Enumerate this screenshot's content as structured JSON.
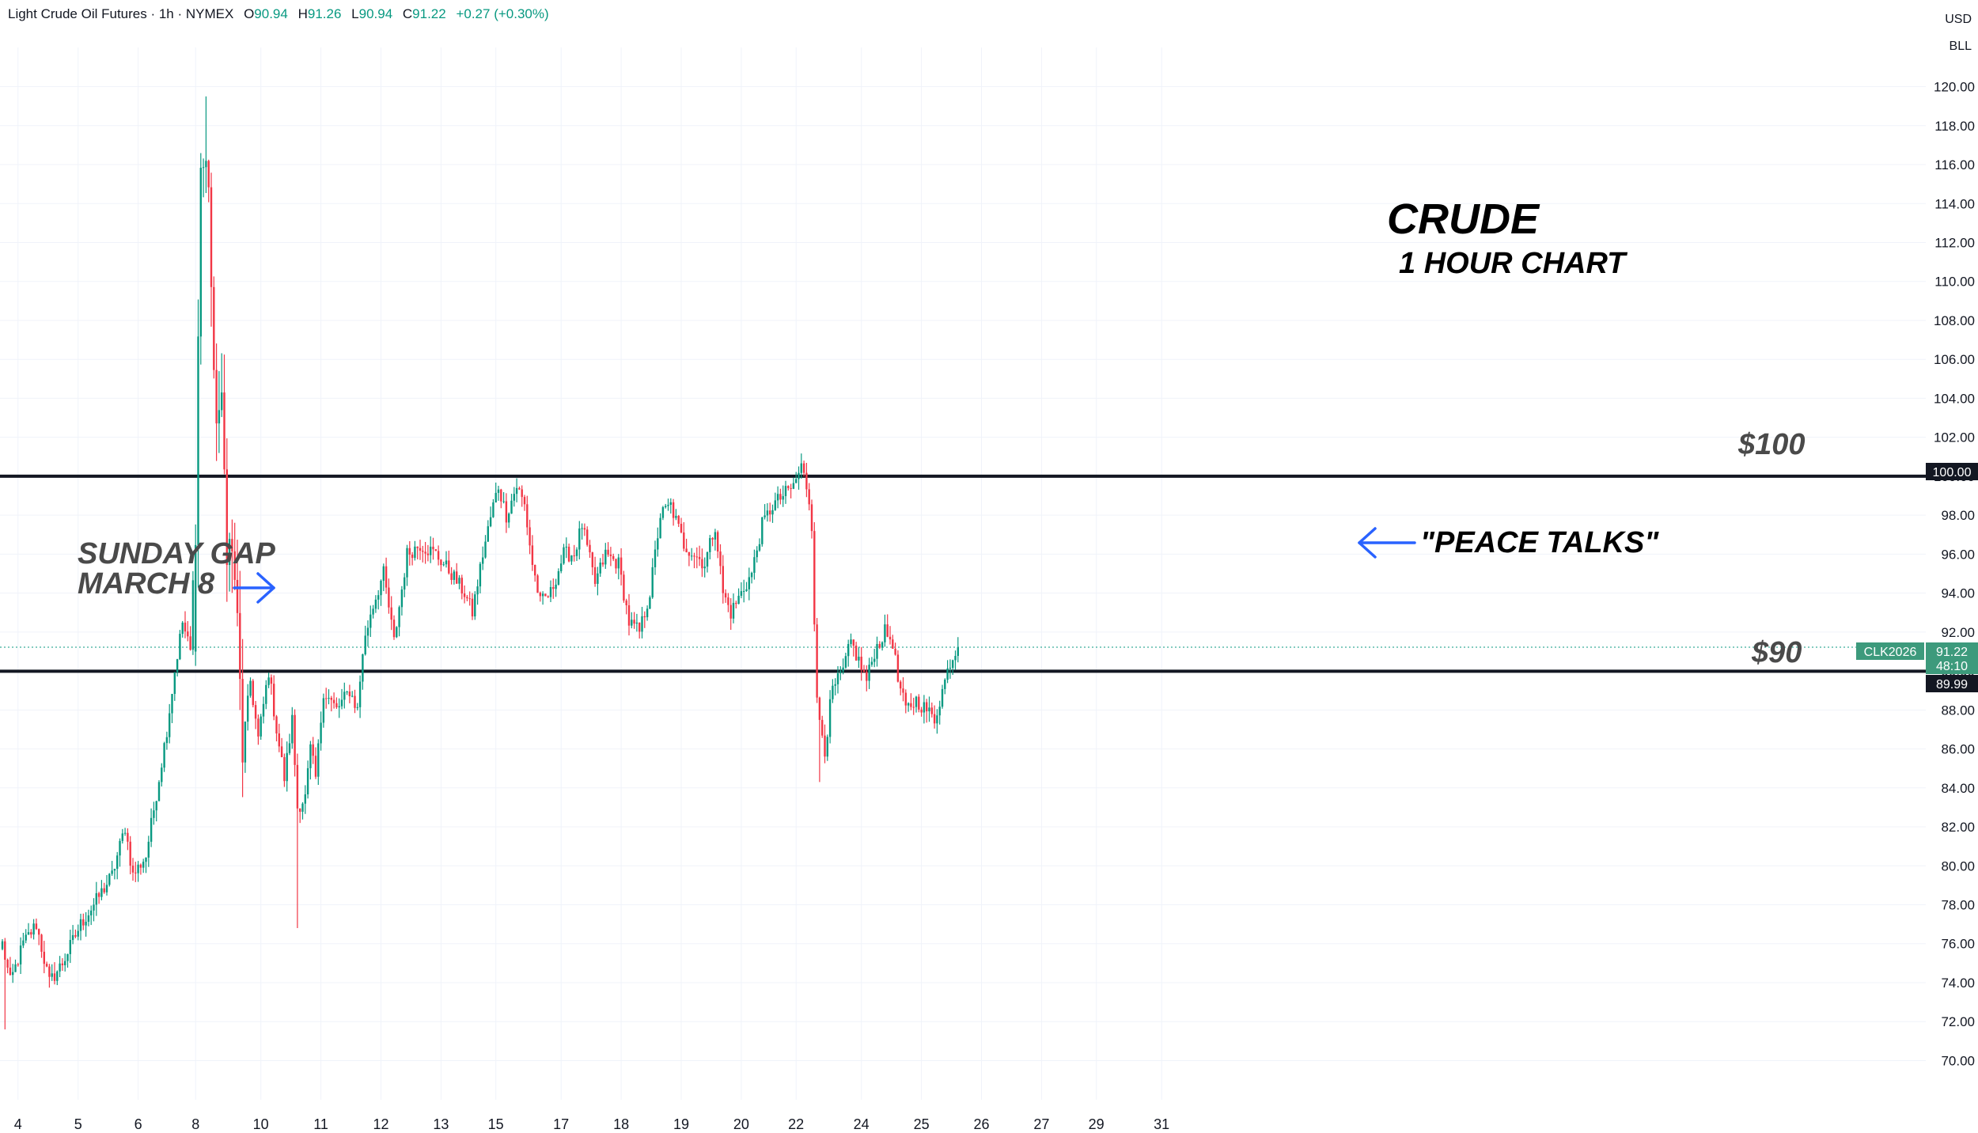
{
  "header": {
    "symbol_title": "Light Crude Oil Futures · 1h · NYMEX",
    "o_label": "O",
    "o_value": "90.94",
    "h_label": "H",
    "h_value": "91.26",
    "l_label": "L",
    "l_value": "90.94",
    "c_label": "C",
    "c_value": "91.22",
    "change": "+0.27 (+0.30%)"
  },
  "axis_currency": "USD",
  "axis_unit": "BLL",
  "colors": {
    "up": "#089981",
    "down": "#f23645",
    "level_line": "#131722",
    "annotation_text": "#4a4a4a",
    "arrow": "#2962ff",
    "price_tag": "#3d9a7c",
    "grid": "#f0f3fa"
  },
  "annotations": {
    "title": "CRUDE",
    "subtitle": "1 HOUR CHART",
    "level_100_label": "$100",
    "level_90_label": "$90",
    "sunday_gap_line1": "SUNDAY GAP",
    "sunday_gap_line2": "MARCH 8",
    "peace_talks": "\"PEACE TALKS\""
  },
  "price_tags": {
    "symbol": "CLK2026",
    "last_price": "91.22",
    "countdown": "48:10",
    "level_100": "100.00",
    "level_90": "89.99"
  },
  "chart_data": {
    "type": "candlestick",
    "ylim": [
      68.8,
      121.2
    ],
    "y_ticks": [
      "120.00",
      "118.00",
      "116.00",
      "114.00",
      "112.00",
      "110.00",
      "108.00",
      "106.00",
      "104.00",
      "102.00",
      "100.00",
      "98.00",
      "96.00",
      "94.00",
      "92.00",
      "90.00",
      "88.00",
      "86.00",
      "84.00",
      "82.00",
      "80.00",
      "78.00",
      "76.00",
      "74.00",
      "72.00",
      "70.00"
    ],
    "x_ticks": [
      {
        "label": "4",
        "i": 6
      },
      {
        "label": "5",
        "i": 29
      },
      {
        "label": "6",
        "i": 52
      },
      {
        "label": "8",
        "i": 74
      },
      {
        "label": "10",
        "i": 99
      },
      {
        "label": "11",
        "i": 122
      },
      {
        "label": "12",
        "i": 145
      },
      {
        "label": "13",
        "i": 168
      },
      {
        "label": "15",
        "i": 189
      },
      {
        "label": "17",
        "i": 214
      },
      {
        "label": "18",
        "i": 237
      },
      {
        "label": "19",
        "i": 260
      },
      {
        "label": "20",
        "i": 283
      },
      {
        "label": "22",
        "i": 304
      },
      {
        "label": "24",
        "i": 329
      },
      {
        "label": "25",
        "i": 352
      },
      {
        "label": "26",
        "i": 375
      },
      {
        "label": "27",
        "i": 398
      },
      {
        "label": "29",
        "i": 419
      },
      {
        "label": "31",
        "i": 444
      }
    ],
    "horizontal_levels": [
      100.0,
      89.99
    ],
    "last_price": 91.22,
    "keypoints": [
      [
        0,
        76.0
      ],
      [
        3,
        74.0
      ],
      [
        8,
        76.0
      ],
      [
        13,
        77.0
      ],
      [
        18,
        74.0
      ],
      [
        23,
        75.0
      ],
      [
        30,
        77.0
      ],
      [
        35,
        78.0
      ],
      [
        42,
        79.5
      ],
      [
        47,
        82.0
      ],
      [
        50,
        79.5
      ],
      [
        55,
        80.5
      ],
      [
        60,
        84.5
      ],
      [
        63,
        87.0
      ],
      [
        66,
        90.0
      ],
      [
        69,
        92.5
      ],
      [
        72,
        91.0
      ],
      [
        74,
        98.0
      ],
      [
        76,
        116.0
      ],
      [
        79,
        115.5
      ],
      [
        81,
        104.0
      ],
      [
        84,
        103.0
      ],
      [
        86,
        97.0
      ],
      [
        89,
        95.0
      ],
      [
        92,
        86.0
      ],
      [
        95,
        89.5
      ],
      [
        98,
        86.5
      ],
      [
        102,
        90.0
      ],
      [
        105,
        87.0
      ],
      [
        108,
        84.5
      ],
      [
        111,
        87.5
      ],
      [
        113,
        83.0
      ],
      [
        116,
        83.5
      ],
      [
        118,
        86.0
      ],
      [
        120,
        84.5
      ],
      [
        123,
        89.0
      ],
      [
        128,
        88.0
      ],
      [
        133,
        89.0
      ],
      [
        136,
        88.0
      ],
      [
        138,
        91.0
      ],
      [
        141,
        93.0
      ],
      [
        146,
        95.0
      ],
      [
        150,
        91.5
      ],
      [
        155,
        96.0
      ],
      [
        160,
        96.5
      ],
      [
        166,
        96.0
      ],
      [
        172,
        95.0
      ],
      [
        177,
        94.0
      ],
      [
        180,
        93.0
      ],
      [
        184,
        96.0
      ],
      [
        188,
        98.5
      ],
      [
        190,
        99.5
      ],
      [
        193,
        98.0
      ],
      [
        197,
        99.5
      ],
      [
        200,
        98.5
      ],
      [
        203,
        95.5
      ],
      [
        206,
        93.5
      ],
      [
        210,
        94.0
      ],
      [
        215,
        96.0
      ],
      [
        219,
        96.0
      ],
      [
        222,
        97.5
      ],
      [
        227,
        94.5
      ],
      [
        231,
        96.0
      ],
      [
        236,
        95.5
      ],
      [
        240,
        92.5
      ],
      [
        244,
        92.0
      ],
      [
        248,
        94.0
      ],
      [
        252,
        98.0
      ],
      [
        256,
        98.5
      ],
      [
        261,
        96.5
      ],
      [
        265,
        96.0
      ],
      [
        269,
        95.5
      ],
      [
        273,
        97.5
      ],
      [
        276,
        94.0
      ],
      [
        279,
        93.0
      ],
      [
        283,
        94.0
      ],
      [
        287,
        95.0
      ],
      [
        291,
        97.5
      ],
      [
        295,
        98.5
      ],
      [
        299,
        99.0
      ],
      [
        303,
        99.5
      ],
      [
        306,
        100.5
      ],
      [
        308,
        99.5
      ],
      [
        310,
        98.0
      ],
      [
        312,
        88.0
      ],
      [
        315,
        86.5
      ],
      [
        318,
        89.0
      ],
      [
        322,
        90.0
      ],
      [
        325,
        91.5
      ],
      [
        328,
        90.5
      ],
      [
        331,
        89.5
      ],
      [
        334,
        91.0
      ],
      [
        338,
        92.0
      ],
      [
        341,
        91.5
      ],
      [
        343,
        89.5
      ],
      [
        346,
        88.0
      ],
      [
        350,
        88.5
      ],
      [
        354,
        88.0
      ],
      [
        357,
        87.5
      ],
      [
        360,
        89.0
      ],
      [
        363,
        90.5
      ],
      [
        366,
        91.2
      ]
    ]
  }
}
